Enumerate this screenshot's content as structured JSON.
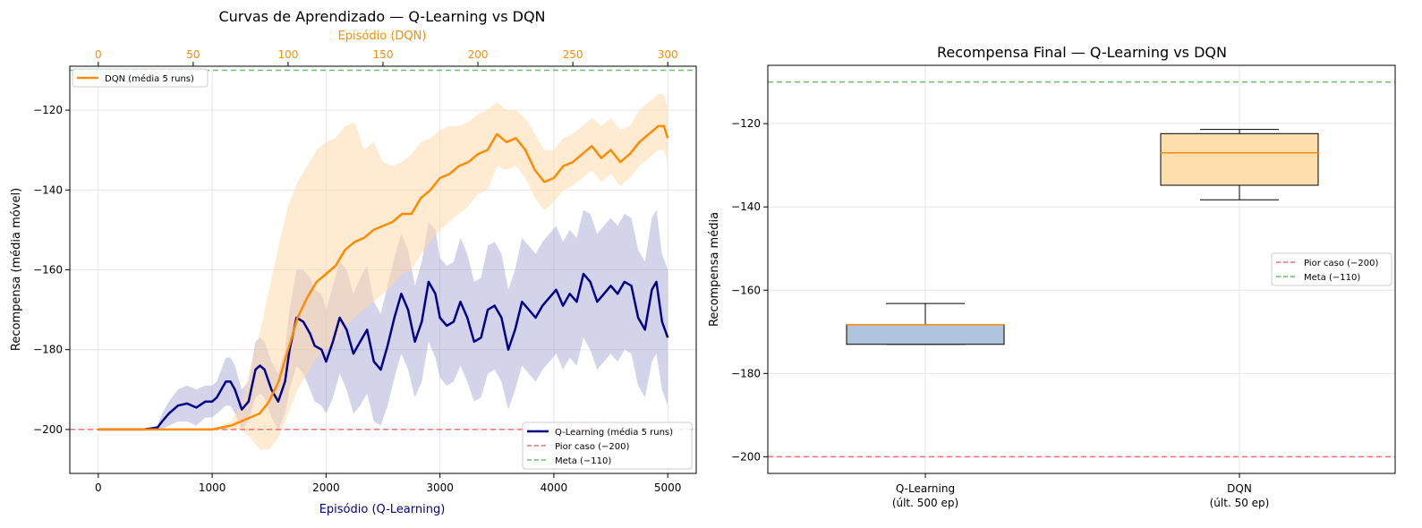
{
  "colors": {
    "qlearning": "#00008b",
    "qlearning_band": "#8080c0",
    "dqn": "#ff8c00",
    "dqn_band": "#ffd9ad",
    "worst": "#f07070",
    "goal": "#6fbf6f",
    "box_ql": "#b0c4de",
    "box_dqn": "#ffdead",
    "median_line": "#ff8c00",
    "grid": "#e6e6e6"
  },
  "chart_data": [
    {
      "type": "line",
      "title": "Curvas de Aprendizado — Q-Learning vs DQN",
      "xlabel": "Episódio (Q-Learning)",
      "x2label": "Episódio (DQN)",
      "ylabel": "Recompensa (média móvel)",
      "xlim": [
        -250,
        5250
      ],
      "x2lim": [
        -15,
        315
      ],
      "ylim": [
        -211,
        -109
      ],
      "xticks": [
        0,
        1000,
        2000,
        3000,
        4000,
        5000
      ],
      "x2ticks": [
        0,
        50,
        100,
        150,
        200,
        250,
        300
      ],
      "yticks": [
        -120,
        -140,
        -160,
        -180,
        -200
      ],
      "grid": true,
      "series": [
        {
          "name": "Q-Learning (média 5 runs)",
          "axis": "bottom",
          "x": [
            0,
            400,
            520,
            560,
            620,
            700,
            780,
            860,
            940,
            1000,
            1040,
            1080,
            1120,
            1160,
            1200,
            1260,
            1320,
            1380,
            1420,
            1460,
            1520,
            1580,
            1640,
            1680,
            1740,
            1800,
            1860,
            1900,
            1960,
            2000,
            2060,
            2120,
            2180,
            2240,
            2300,
            2360,
            2420,
            2480,
            2540,
            2600,
            2660,
            2720,
            2780,
            2840,
            2900,
            2960,
            3000,
            3060,
            3120,
            3180,
            3240,
            3300,
            3360,
            3420,
            3480,
            3540,
            3600,
            3660,
            3720,
            3780,
            3840,
            3900,
            3960,
            4020,
            4080,
            4140,
            4200,
            4260,
            4320,
            4380,
            4440,
            4500,
            4560,
            4620,
            4680,
            4740,
            4800,
            4860,
            4900,
            4950,
            5000
          ],
          "y": [
            -200,
            -200,
            -199.5,
            -198,
            -196,
            -194,
            -193.5,
            -194.5,
            -193,
            -193,
            -192,
            -190,
            -188,
            -188,
            -190,
            -195,
            -193,
            -185,
            -184,
            -185,
            -190,
            -193,
            -188,
            -180,
            -172,
            -173,
            -176,
            -179,
            -180,
            -183,
            -178,
            -172,
            -175,
            -181,
            -178,
            -175,
            -183,
            -185,
            -179,
            -172,
            -166,
            -170,
            -178,
            -173,
            -163,
            -166,
            -172,
            -174,
            -173,
            -168,
            -172,
            -178,
            -177,
            -170,
            -169,
            -172,
            -180,
            -175,
            -168,
            -170,
            -172,
            -169,
            -167,
            -165,
            -169,
            -166,
            -168,
            -161,
            -163,
            -168,
            -166,
            -164,
            -166,
            -163,
            -164,
            -172,
            -175,
            -165,
            -163,
            -173,
            -177
          ],
          "lower": [
            -200,
            -200,
            -200,
            -200,
            -199,
            -198,
            -198,
            -199,
            -197,
            -197,
            -196,
            -195,
            -194,
            -194,
            -196,
            -200,
            -198,
            -192,
            -191,
            -192,
            -197,
            -200,
            -196,
            -190,
            -184,
            -186,
            -190,
            -193,
            -194,
            -196,
            -192,
            -186,
            -190,
            -196,
            -194,
            -191,
            -198,
            -199,
            -194,
            -187,
            -181,
            -185,
            -192,
            -188,
            -178,
            -182,
            -187,
            -189,
            -188,
            -184,
            -188,
            -193,
            -192,
            -186,
            -185,
            -188,
            -195,
            -190,
            -184,
            -186,
            -188,
            -185,
            -183,
            -181,
            -185,
            -182,
            -184,
            -177,
            -180,
            -185,
            -183,
            -181,
            -183,
            -180,
            -181,
            -189,
            -192,
            -183,
            -181,
            -190,
            -194
          ],
          "upper": [
            -200,
            -200,
            -199,
            -196,
            -193,
            -190,
            -189,
            -190,
            -189,
            -189,
            -188,
            -185,
            -182,
            -182,
            -184,
            -190,
            -188,
            -178,
            -177,
            -178,
            -183,
            -186,
            -180,
            -170,
            -160,
            -160,
            -162,
            -165,
            -166,
            -170,
            -164,
            -158,
            -160,
            -166,
            -162,
            -159,
            -168,
            -171,
            -164,
            -157,
            -151,
            -155,
            -164,
            -158,
            -148,
            -150,
            -157,
            -159,
            -158,
            -152,
            -156,
            -163,
            -162,
            -154,
            -153,
            -156,
            -165,
            -160,
            -152,
            -154,
            -156,
            -153,
            -151,
            -149,
            -153,
            -150,
            -152,
            -145,
            -146,
            -151,
            -149,
            -147,
            -149,
            -146,
            -147,
            -155,
            -158,
            -147,
            -145,
            -156,
            -160
          ]
        },
        {
          "name": "DQN (média 5 runs)",
          "axis": "top",
          "x": [
            0,
            60,
            70,
            75,
            80,
            85,
            90,
            95,
            100,
            105,
            110,
            115,
            120,
            125,
            130,
            135,
            140,
            145,
            150,
            155,
            160,
            165,
            170,
            175,
            180,
            185,
            190,
            195,
            200,
            205,
            210,
            215,
            220,
            225,
            230,
            235,
            240,
            245,
            250,
            255,
            260,
            265,
            270,
            275,
            280,
            285,
            290,
            295,
            298,
            300
          ],
          "y": [
            -200,
            -200,
            -199,
            -198,
            -197,
            -196,
            -193,
            -188,
            -180,
            -172,
            -167,
            -163,
            -161,
            -159,
            -155,
            -153,
            -152,
            -150,
            -149,
            -148,
            -146,
            -146,
            -142,
            -140,
            -137,
            -136,
            -134,
            -133,
            -131,
            -130,
            -126,
            -128,
            -127,
            -130,
            -135,
            -138,
            -137,
            -134,
            -133,
            -131,
            -129,
            -132,
            -130,
            -133,
            -131,
            -128,
            -126,
            -124,
            -124,
            -127
          ],
          "lower": [
            -200,
            -200,
            -200,
            -200,
            -202,
            -205,
            -205,
            -202,
            -196,
            -190,
            -186,
            -182,
            -180,
            -178,
            -174,
            -172,
            -170,
            -168,
            -166,
            -164,
            -161,
            -160,
            -156,
            -153,
            -150,
            -148,
            -146,
            -144,
            -141,
            -140,
            -134,
            -135,
            -134,
            -137,
            -142,
            -145,
            -143,
            -140,
            -139,
            -137,
            -135,
            -138,
            -136,
            -139,
            -137,
            -134,
            -132,
            -130,
            -130,
            -133
          ],
          "upper": [
            -200,
            -200,
            -198,
            -194,
            -185,
            -176,
            -165,
            -154,
            -144,
            -138,
            -134,
            -130,
            -128,
            -127,
            -124,
            -123,
            -130,
            -128,
            -133,
            -134,
            -133,
            -131,
            -128,
            -127,
            -125,
            -124,
            -124,
            -123,
            -121,
            -120,
            -118,
            -120,
            -120,
            -122,
            -126,
            -130,
            -130,
            -127,
            -126,
            -124,
            -122,
            -124,
            -122,
            -125,
            -124,
            -120,
            -118,
            -116,
            -116,
            -120
          ]
        }
      ],
      "hlines": [
        {
          "name": "Pior caso (−200)",
          "y": -200
        },
        {
          "name": "Meta (−110)",
          "y": -110
        }
      ],
      "legend_top": {
        "position": "upper-left",
        "entries": [
          "DQN (média 5 runs)"
        ]
      },
      "legend_bottom": {
        "position": "lower-right",
        "entries": [
          "Q-Learning (média 5 runs)",
          "Pior caso (−200)",
          "Meta (−110)"
        ]
      }
    },
    {
      "type": "box",
      "title": "Recompensa Final — Q-Learning vs DQN",
      "ylabel": "Recompensa média",
      "ylim": [
        -204,
        -106
      ],
      "yticks": [
        -120,
        -140,
        -160,
        -180,
        -200
      ],
      "grid": true,
      "categories": [
        "Q-Learning\n(últ. 500 ep)",
        "DQN\n(últ. 50 ep)"
      ],
      "boxes": [
        {
          "name": "Q-Learning",
          "label_line1": "Q-Learning",
          "label_line2": "(últ. 500 ep)",
          "whisker_low": -173,
          "q1": -173,
          "median": -168.3,
          "q3": -168.3,
          "whisker_high": -163.2
        },
        {
          "name": "DQN",
          "label_line1": "DQN",
          "label_line2": "(últ. 50 ep)",
          "whisker_low": -138.3,
          "q1": -134.8,
          "median": -127,
          "q3": -122.4,
          "whisker_high": -121.4
        }
      ],
      "hlines": [
        {
          "name": "Pior caso (−200)",
          "y": -200
        },
        {
          "name": "Meta (−110)",
          "y": -110
        }
      ],
      "legend": {
        "position": "center-right",
        "entries": [
          "Pior caso (−200)",
          "Meta (−110)"
        ]
      }
    }
  ]
}
